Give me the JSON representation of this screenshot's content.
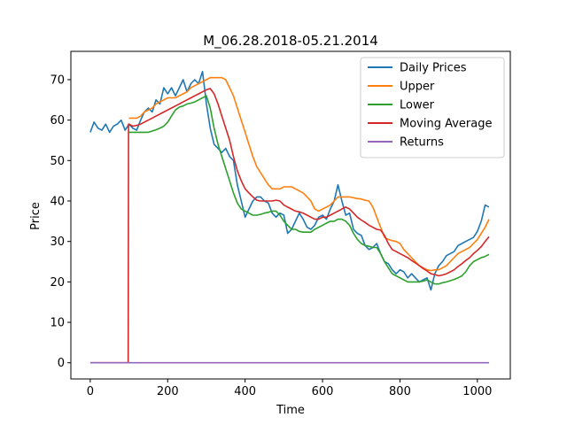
{
  "chart_data": {
    "type": "line",
    "title": "M_06.28.2018-05.21.2014",
    "xlabel": "Time",
    "ylabel": "Price",
    "xlim": [
      -50,
      1085
    ],
    "ylim": [
      -4,
      77
    ],
    "xticks": [
      0,
      200,
      400,
      600,
      800,
      1000
    ],
    "yticks": [
      0,
      10,
      20,
      30,
      40,
      50,
      60,
      70
    ],
    "grid": false,
    "legend_position": "upper right",
    "series": [
      {
        "name": "Daily Prices",
        "color": "#1f77b4",
        "x": [
          0,
          10,
          20,
          30,
          40,
          50,
          60,
          70,
          80,
          90,
          100,
          110,
          120,
          130,
          140,
          150,
          160,
          170,
          180,
          190,
          200,
          210,
          220,
          230,
          240,
          250,
          260,
          270,
          280,
          290,
          300,
          310,
          320,
          330,
          340,
          350,
          360,
          370,
          380,
          390,
          400,
          410,
          420,
          430,
          440,
          450,
          460,
          470,
          480,
          490,
          500,
          510,
          520,
          530,
          540,
          550,
          560,
          570,
          580,
          590,
          600,
          610,
          620,
          630,
          640,
          650,
          660,
          670,
          680,
          690,
          700,
          710,
          720,
          730,
          740,
          750,
          760,
          770,
          780,
          790,
          800,
          810,
          820,
          830,
          840,
          850,
          860,
          870,
          880,
          890,
          900,
          910,
          920,
          930,
          940,
          950,
          960,
          970,
          980,
          990,
          1000,
          1010,
          1020,
          1030
        ],
        "y": [
          57,
          59.5,
          58,
          57.5,
          59,
          57,
          58.5,
          59,
          60,
          57.5,
          59,
          58,
          57.5,
          60,
          62,
          63,
          62,
          65,
          64,
          68,
          66.5,
          68,
          66,
          68,
          70,
          67,
          69,
          70,
          69,
          72,
          64,
          58,
          54,
          53,
          52,
          53,
          51,
          50,
          44,
          40,
          36,
          38,
          40,
          41,
          41,
          40,
          39.5,
          37,
          36,
          37,
          36.5,
          32,
          33,
          35,
          37,
          35.5,
          33.5,
          33,
          34,
          36,
          36.5,
          35.5,
          38,
          40,
          44,
          40,
          36.5,
          37,
          33,
          32,
          31.5,
          29,
          28,
          28.5,
          29.5,
          27,
          25,
          24.5,
          23,
          22,
          23,
          22.5,
          21,
          22,
          21,
          20,
          20.5,
          21,
          18,
          22,
          24,
          25,
          26.5,
          27,
          27.5,
          29,
          29.5,
          30,
          30.5,
          31,
          32.5,
          35,
          39,
          38.5
        ]
      },
      {
        "name": "Upper",
        "color": "#ff7f0e",
        "x": [
          100,
          110,
          120,
          130,
          140,
          150,
          160,
          170,
          180,
          190,
          200,
          210,
          220,
          230,
          240,
          250,
          260,
          270,
          280,
          290,
          300,
          310,
          320,
          330,
          340,
          350,
          360,
          370,
          380,
          390,
          400,
          410,
          420,
          430,
          440,
          450,
          460,
          470,
          480,
          490,
          500,
          510,
          520,
          530,
          540,
          550,
          560,
          570,
          580,
          590,
          600,
          610,
          620,
          630,
          640,
          650,
          660,
          670,
          680,
          690,
          700,
          710,
          720,
          730,
          740,
          750,
          760,
          770,
          780,
          790,
          800,
          810,
          820,
          830,
          840,
          850,
          860,
          870,
          880,
          890,
          900,
          910,
          920,
          930,
          940,
          950,
          960,
          970,
          980,
          990,
          1000,
          1010,
          1020,
          1030
        ],
        "y": [
          60.5,
          60.5,
          60.5,
          61,
          62,
          62.5,
          63,
          64,
          64.5,
          65,
          65.5,
          65.5,
          65.5,
          66,
          66.5,
          67,
          68,
          68.5,
          69,
          69.5,
          70,
          70.5,
          70.5,
          70.5,
          70.5,
          70,
          68,
          66,
          63,
          60,
          57,
          54,
          51,
          48.5,
          47,
          45.5,
          44,
          43,
          43,
          43,
          43.5,
          43.5,
          43.5,
          43,
          42.5,
          42,
          41,
          40,
          38,
          37.5,
          38,
          38.5,
          39,
          40,
          41,
          41,
          41,
          41,
          40.8,
          40.6,
          40.5,
          40.2,
          40,
          38.5,
          36,
          33.5,
          31,
          30.5,
          30.2,
          30,
          29.5,
          28,
          27,
          26,
          25,
          24,
          23.5,
          23,
          22.8,
          23,
          23,
          23.5,
          24,
          25,
          26,
          27,
          27.5,
          28,
          28.5,
          29.5,
          30.5,
          32,
          33.5,
          35.5
        ]
      },
      {
        "name": "Lower",
        "color": "#2ca02c",
        "x": [
          100,
          110,
          120,
          130,
          140,
          150,
          160,
          170,
          180,
          190,
          200,
          210,
          220,
          230,
          240,
          250,
          260,
          270,
          280,
          290,
          300,
          310,
          320,
          330,
          340,
          350,
          360,
          370,
          380,
          390,
          400,
          410,
          420,
          430,
          440,
          450,
          460,
          470,
          480,
          490,
          500,
          510,
          520,
          530,
          540,
          550,
          560,
          570,
          580,
          590,
          600,
          610,
          620,
          630,
          640,
          650,
          660,
          670,
          680,
          690,
          700,
          710,
          720,
          730,
          740,
          750,
          760,
          770,
          780,
          790,
          800,
          810,
          820,
          830,
          840,
          850,
          860,
          870,
          880,
          890,
          900,
          910,
          920,
          930,
          940,
          950,
          960,
          970,
          980,
          990,
          1000,
          1010,
          1020,
          1030
        ],
        "y": [
          57,
          57,
          57,
          57,
          57,
          57,
          57.3,
          57.6,
          58,
          58.5,
          59.5,
          61,
          62.5,
          63.2,
          63.5,
          64,
          64.2,
          64.5,
          65,
          65.5,
          66,
          63,
          58,
          54,
          51,
          48,
          45,
          42,
          39.5,
          38,
          37.5,
          37,
          36.5,
          36.5,
          36.7,
          37,
          37.2,
          37.5,
          37.5,
          36.5,
          35,
          34,
          33,
          33,
          32.5,
          32.3,
          32.3,
          32.3,
          33,
          33.5,
          34,
          34.5,
          35,
          35,
          35.5,
          35.5,
          35,
          34,
          32,
          30.5,
          29.5,
          29,
          28.8,
          28.5,
          28.5,
          27,
          25,
          23.5,
          22,
          21.5,
          21,
          20.5,
          20,
          20,
          20,
          20,
          20.2,
          20.5,
          20,
          19.5,
          19.5,
          19.8,
          20,
          20.3,
          20.6,
          21,
          21.5,
          22.5,
          24,
          25,
          25.5,
          26,
          26.3,
          26.8
        ]
      },
      {
        "name": "Moving Average",
        "color": "#d62728",
        "x": [
          0,
          98,
          99,
          100,
          110,
          120,
          130,
          140,
          150,
          160,
          170,
          180,
          190,
          200,
          210,
          220,
          230,
          240,
          250,
          260,
          270,
          280,
          290,
          300,
          310,
          320,
          330,
          340,
          350,
          360,
          370,
          380,
          390,
          400,
          410,
          420,
          430,
          440,
          450,
          460,
          470,
          480,
          490,
          500,
          510,
          520,
          530,
          540,
          550,
          560,
          570,
          580,
          590,
          600,
          610,
          620,
          630,
          640,
          650,
          660,
          670,
          680,
          690,
          700,
          710,
          720,
          730,
          740,
          750,
          760,
          770,
          780,
          790,
          800,
          810,
          820,
          830,
          840,
          850,
          860,
          870,
          880,
          890,
          900,
          910,
          920,
          930,
          940,
          950,
          960,
          970,
          980,
          990,
          1000,
          1010,
          1020,
          1030
        ],
        "y": [
          0,
          0,
          59,
          59,
          58.5,
          58.7,
          59,
          59.5,
          60,
          60.5,
          61,
          61.5,
          62,
          62.5,
          63,
          63.5,
          64,
          64.5,
          65,
          65.5,
          66,
          66.5,
          67,
          67.5,
          67.8,
          66.5,
          64,
          61,
          58,
          55,
          51,
          47.5,
          45,
          43,
          42,
          41,
          40.2,
          40,
          40,
          40,
          40,
          40.2,
          40,
          39,
          38.5,
          38,
          37.5,
          37.3,
          37,
          36.5,
          36,
          35.5,
          35.5,
          36,
          36,
          36.5,
          37,
          37.5,
          38,
          38.5,
          38,
          37,
          36,
          35.3,
          34.7,
          34,
          33.5,
          33,
          32.8,
          31.5,
          29.5,
          28,
          27.5,
          27,
          26.5,
          26,
          25.3,
          24.7,
          24,
          23.3,
          22.7,
          22,
          21.8,
          21.5,
          21.7,
          22,
          22.5,
          23,
          23.8,
          24.5,
          25.3,
          26,
          27,
          27.8,
          28.7,
          30,
          31.2
        ]
      },
      {
        "name": "Returns",
        "color": "#9467bd",
        "x": [
          0,
          1030
        ],
        "y": [
          0,
          0
        ]
      }
    ]
  }
}
